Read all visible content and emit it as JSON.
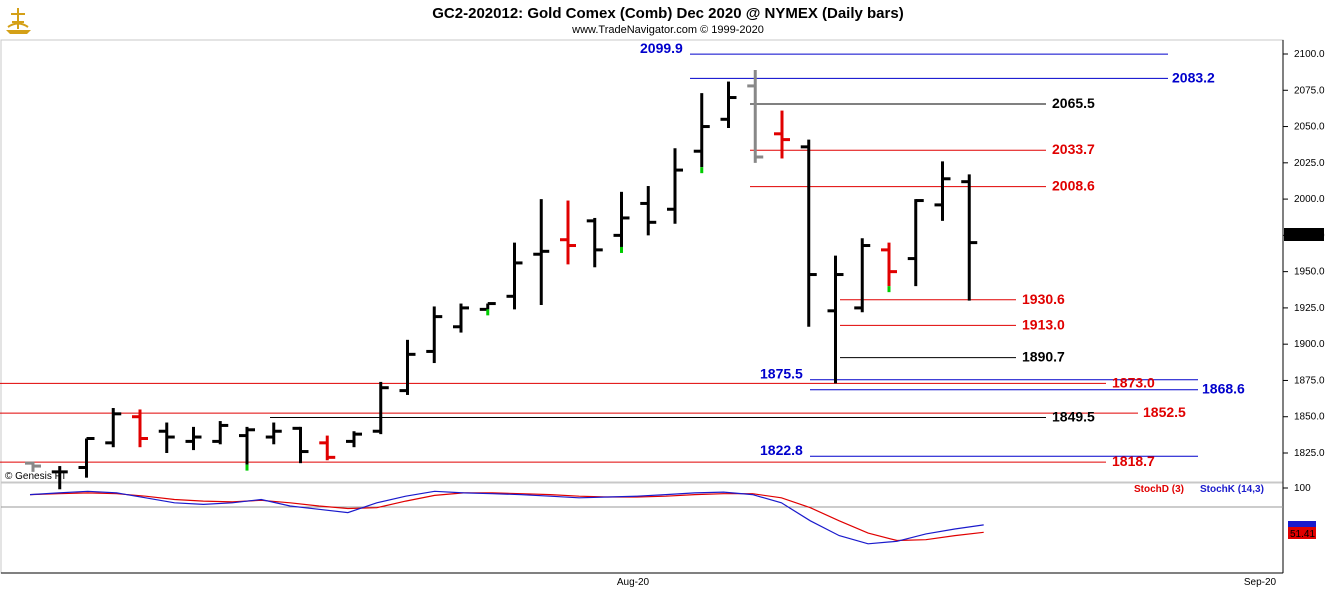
{
  "header": {
    "title": "GC2-202012:  Gold Comex (Comb) Dec 2020 @ NYMEX  (Daily bars)",
    "subtitle": "www.TradeNavigator.com © 1999-2020"
  },
  "watermark": "© Genesis FT",
  "logo_icon": "genesis-ship-icon",
  "colors": {
    "up": "#000000",
    "down": "#e00000",
    "grey": "#888888",
    "blue": "#0000cc",
    "green": "#00cc00",
    "stochD": "#e00000",
    "stochK": "#1a1acc"
  },
  "chart_data": {
    "type": "ohlc",
    "title": "GC2-202012:  Gold Comex (Comb) Dec 2020 @ NYMEX  (Daily bars)",
    "y_range": [
      1805,
      2110
    ],
    "y_ticks": [
      1825.0,
      1850.0,
      1875.0,
      1900.0,
      1925.0,
      1950.0,
      1975.0,
      2000.0,
      2025.0,
      2050.0,
      2075.0,
      2100.0
    ],
    "x_labels": [
      "Aug-20",
      "Sep-20"
    ],
    "last_price": "1970.3",
    "bars": [
      {
        "o": 1818,
        "h": 1819,
        "l": 1812,
        "c": 1816,
        "color": "grey"
      },
      {
        "o": 1812,
        "h": 1816,
        "l": 1800,
        "c": 1812,
        "color": "up"
      },
      {
        "o": 1815,
        "h": 1835,
        "l": 1808,
        "c": 1835,
        "color": "up"
      },
      {
        "o": 1832,
        "h": 1856,
        "l": 1829,
        "c": 1852,
        "color": "up"
      },
      {
        "o": 1850,
        "h": 1855,
        "l": 1829,
        "c": 1835,
        "color": "down"
      },
      {
        "o": 1840,
        "h": 1846,
        "l": 1825,
        "c": 1836,
        "color": "up"
      },
      {
        "o": 1833,
        "h": 1843,
        "l": 1827,
        "c": 1836,
        "color": "up"
      },
      {
        "o": 1833,
        "h": 1847,
        "l": 1831,
        "c": 1844,
        "color": "up"
      },
      {
        "o": 1837,
        "h": 1843,
        "l": 1817,
        "c": 1841,
        "color": "up"
      },
      {
        "o": 1836,
        "h": 1846,
        "l": 1831,
        "c": 1840,
        "color": "up"
      },
      {
        "o": 1842,
        "h": 1843,
        "l": 1818,
        "c": 1826,
        "color": "up"
      },
      {
        "o": 1832,
        "h": 1837,
        "l": 1820,
        "c": 1822,
        "color": "down"
      },
      {
        "o": 1833,
        "h": 1840,
        "l": 1829,
        "c": 1838,
        "color": "up"
      },
      {
        "o": 1840,
        "h": 1874,
        "l": 1838,
        "c": 1870,
        "color": "up"
      },
      {
        "o": 1868,
        "h": 1903,
        "l": 1865,
        "c": 1893,
        "color": "up"
      },
      {
        "o": 1895,
        "h": 1926,
        "l": 1887,
        "c": 1919,
        "color": "up"
      },
      {
        "o": 1912,
        "h": 1928,
        "l": 1908,
        "c": 1925,
        "color": "up"
      },
      {
        "o": 1924,
        "h": 1928,
        "l": 1924,
        "c": 1928,
        "color": "up"
      },
      {
        "o": 1933,
        "h": 1970,
        "l": 1924,
        "c": 1956,
        "color": "up"
      },
      {
        "o": 1962,
        "h": 2000,
        "l": 1927,
        "c": 1964,
        "color": "up"
      },
      {
        "o": 1972,
        "h": 1999,
        "l": 1955,
        "c": 1968,
        "color": "down"
      },
      {
        "o": 1985,
        "h": 1987,
        "l": 1953,
        "c": 1965,
        "color": "up"
      },
      {
        "o": 1975,
        "h": 2005,
        "l": 1967,
        "c": 1987,
        "color": "up"
      },
      {
        "o": 1997,
        "h": 2009,
        "l": 1975,
        "c": 1984,
        "color": "up"
      },
      {
        "o": 1993,
        "h": 2035,
        "l": 1983,
        "c": 2020,
        "color": "up"
      },
      {
        "o": 2033,
        "h": 2073,
        "l": 2022,
        "c": 2050,
        "color": "up"
      },
      {
        "o": 2055,
        "h": 2081,
        "l": 2049,
        "c": 2070,
        "color": "up"
      },
      {
        "o": 2078,
        "h": 2089,
        "l": 2025,
        "c": 2029,
        "color": "grey"
      },
      {
        "o": 2045,
        "h": 2061,
        "l": 2028,
        "c": 2041,
        "color": "down"
      },
      {
        "o": 2036,
        "h": 2041,
        "l": 1912,
        "c": 1948,
        "color": "up"
      },
      {
        "o": 1923,
        "h": 1961,
        "l": 1873,
        "c": 1948,
        "color": "up"
      },
      {
        "o": 1925,
        "h": 1973,
        "l": 1922,
        "c": 1968,
        "color": "up"
      },
      {
        "o": 1965,
        "h": 1970,
        "l": 1940,
        "c": 1950,
        "color": "down"
      },
      {
        "o": 1959,
        "h": 2000,
        "l": 1940,
        "c": 1999,
        "color": "up"
      },
      {
        "o": 1996,
        "h": 2026,
        "l": 1985,
        "c": 2014,
        "color": "up"
      },
      {
        "o": 2012,
        "h": 2017,
        "l": 1930,
        "c": 1970,
        "color": "up"
      }
    ],
    "levels": [
      {
        "label": "2099.9",
        "value": 2099.9,
        "color": "blue"
      },
      {
        "label": "2083.2",
        "value": 2083.2,
        "color": "blue"
      },
      {
        "label": "2065.5",
        "value": 2065.5,
        "color": "black"
      },
      {
        "label": "2033.7",
        "value": 2033.7,
        "color": "red"
      },
      {
        "label": "2008.6",
        "value": 2008.6,
        "color": "red"
      },
      {
        "label": "1930.6",
        "value": 1930.6,
        "color": "red"
      },
      {
        "label": "1913.0",
        "value": 1913.0,
        "color": "red"
      },
      {
        "label": "1890.7",
        "value": 1890.7,
        "color": "black"
      },
      {
        "label": "1875.5",
        "value": 1875.5,
        "color": "blue"
      },
      {
        "label": "1873.0",
        "value": 1873.0,
        "color": "red"
      },
      {
        "label": "1868.6",
        "value": 1868.6,
        "color": "blue"
      },
      {
        "label": "1852.5",
        "value": 1852.5,
        "color": "red"
      },
      {
        "label": "1849.5",
        "value": 1849.5,
        "color": "black"
      },
      {
        "label": "1822.8",
        "value": 1822.8,
        "color": "blue"
      },
      {
        "label": "1818.7",
        "value": 1818.7,
        "color": "red"
      }
    ],
    "stochastic": {
      "label_d": "StochD (3)",
      "label_k": "StochK (14,3)",
      "top_tick": "100",
      "last_value": "51.41",
      "range": [
        0,
        100
      ],
      "k": [
        92,
        94,
        96,
        94,
        88,
        82,
        80,
        82,
        86,
        78,
        74,
        70,
        82,
        90,
        96,
        94,
        93,
        92,
        90,
        88,
        89,
        90,
        92,
        94,
        95,
        92,
        82,
        60,
        42,
        32,
        35,
        44,
        50,
        55
      ],
      "d": [
        92,
        93,
        94,
        93,
        90,
        86,
        84,
        83,
        85,
        82,
        78,
        75,
        76,
        84,
        91,
        94,
        94,
        93,
        92,
        90,
        89,
        89,
        90,
        92,
        93,
        93,
        88,
        76,
        60,
        45,
        36,
        37,
        42,
        46
      ]
    }
  }
}
